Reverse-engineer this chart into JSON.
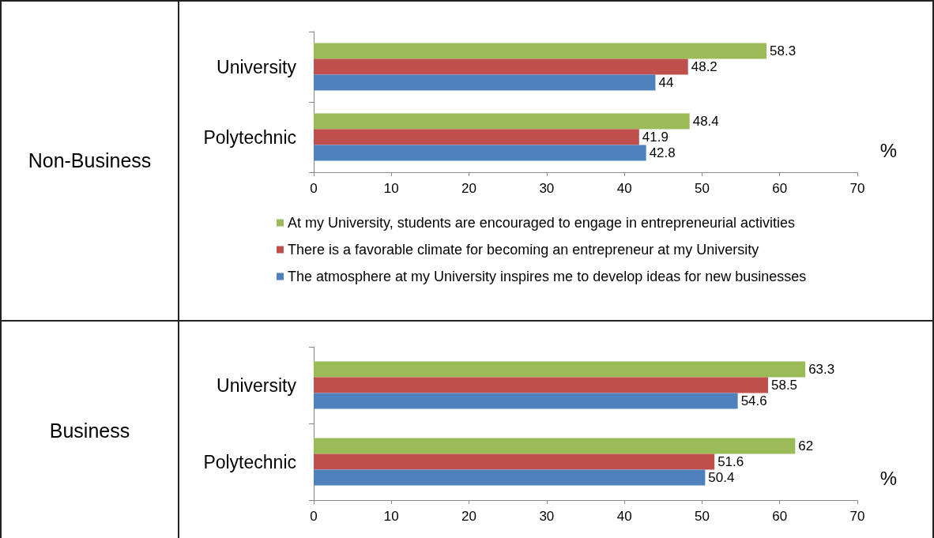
{
  "chart_data": [
    {
      "type": "bar",
      "title": "Non-Business",
      "orientation": "horizontal",
      "xlabel": "%",
      "categories": [
        "University",
        "Polytechnic"
      ],
      "series": [
        {
          "name": "At my University, students are encouraged to engage in entrepreneurial activities",
          "color": "#9bbb59",
          "values": [
            58.3,
            48.4
          ]
        },
        {
          "name": "There is a favorable climate for becoming an entrepreneur at my University",
          "color": "#c0504d",
          "values": [
            48.2,
            41.9
          ]
        },
        {
          "name": "The atmosphere at my University inspires me to develop ideas for new businesses",
          "color": "#4f81bd",
          "values": [
            44,
            42.8
          ]
        }
      ],
      "xlim": [
        0,
        70
      ],
      "xticks": [
        0,
        10,
        20,
        30,
        40,
        50,
        60,
        70
      ],
      "grid": false,
      "legend": "bottom",
      "data_labels": true
    },
    {
      "type": "bar",
      "title": "Business",
      "orientation": "horizontal",
      "xlabel": "%",
      "categories": [
        "University",
        "Polytechnic"
      ],
      "series": [
        {
          "color": "#9bbb59",
          "values": [
            63.3,
            62
          ]
        },
        {
          "color": "#c0504d",
          "values": [
            58.5,
            51.6
          ]
        },
        {
          "color": "#4f81bd",
          "values": [
            54.6,
            50.4
          ]
        }
      ],
      "xlim": [
        0,
        70
      ],
      "xticks": [
        0,
        10,
        20,
        30,
        40,
        50,
        60,
        70
      ],
      "grid": false,
      "legend": false,
      "data_labels": true
    }
  ]
}
